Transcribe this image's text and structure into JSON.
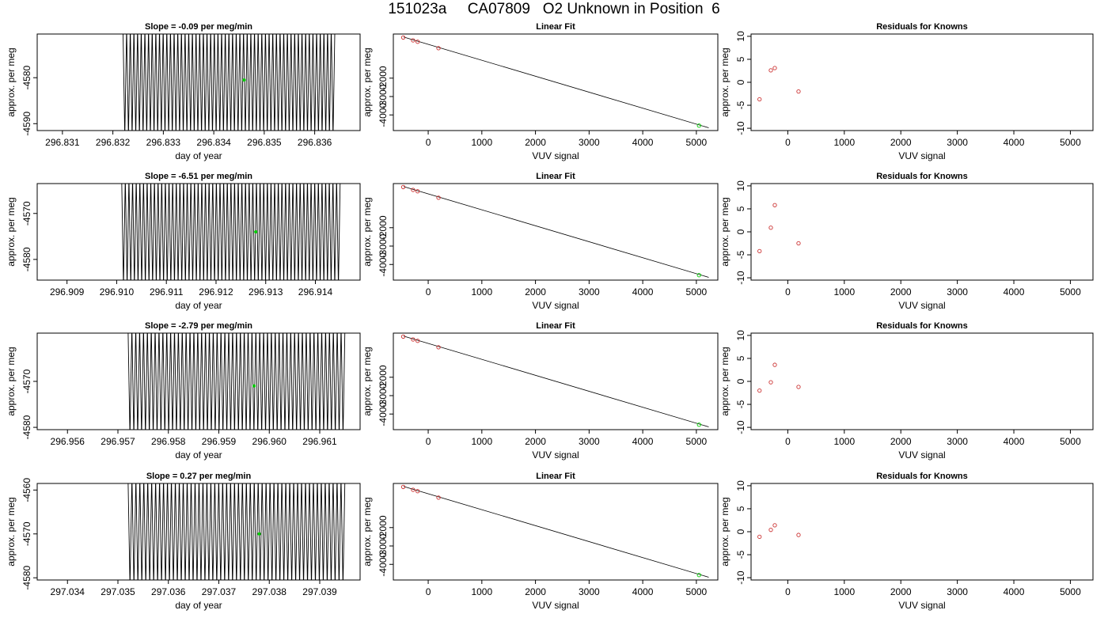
{
  "figure": {
    "title": "151023a     CA07809   O2 Unknown in Position  6"
  },
  "chart_data": [
    {
      "type": "line",
      "row": 0,
      "col": 0,
      "title": "Slope =  -0.09  per meg/min",
      "xlabel": "day of year",
      "ylabel": "approx. per meg",
      "xlim": [
        296.8305,
        296.8369
      ],
      "ylim": [
        -4591.5,
        -4570.5
      ],
      "xticks": [
        296.831,
        296.832,
        296.833,
        296.834,
        296.835,
        296.836
      ],
      "xtick_labels": [
        "296.831",
        "296.832",
        "296.833",
        "296.834",
        "296.835",
        "296.836"
      ],
      "yticks": [
        -4580,
        -4590
      ],
      "ytick_labels": [
        "-4580",
        "-4590"
      ],
      "series": [
        {
          "style": "oscillating-trace",
          "x_start": 296.8322,
          "x_end": 296.8364,
          "y_low": -4593,
          "y_high": -4569,
          "cycles": 58,
          "color": "#000000"
        }
      ],
      "marker": {
        "x": 296.8346,
        "y": -4580.5,
        "color": "#00cc00"
      }
    },
    {
      "type": "scatter",
      "row": 0,
      "col": 1,
      "title": "Linear Fit",
      "xlabel": "VUV signal",
      "ylabel": "approx. per meg",
      "xlim": [
        -650,
        5400
      ],
      "ylim": [
        -4850,
        400
      ],
      "xticks": [
        0,
        1000,
        2000,
        3000,
        4000,
        5000
      ],
      "xtick_labels": [
        "0",
        "1000",
        "2000",
        "3000",
        "4000",
        "5000"
      ],
      "yticks": [
        -2000,
        -3000,
        -4000
      ],
      "ytick_labels": [
        "-2000",
        "-3000",
        "-4000"
      ],
      "fit_line": {
        "x0": -460,
        "y0": 240,
        "x1": 5230,
        "y1": -4700
      },
      "points": [
        {
          "x": -465,
          "y": 210,
          "color": "#cc3333"
        },
        {
          "x": -282,
          "y": 55,
          "color": "#cc3333"
        },
        {
          "x": -197,
          "y": -20,
          "color": "#cc3333"
        },
        {
          "x": 192,
          "y": -370,
          "color": "#cc3333"
        },
        {
          "x": 5050,
          "y": -4580,
          "color": "#00cc00"
        }
      ]
    },
    {
      "type": "scatter",
      "row": 0,
      "col": 2,
      "title": "Residuals for Knowns",
      "xlabel": "VUV signal",
      "ylabel": "approx. per meg",
      "xlim": [
        -650,
        5400
      ],
      "ylim": [
        -10.5,
        10.5
      ],
      "xticks": [
        0,
        1000,
        2000,
        3000,
        4000,
        5000
      ],
      "xtick_labels": [
        "0",
        "1000",
        "2000",
        "3000",
        "4000",
        "5000"
      ],
      "yticks": [
        10,
        5,
        0,
        -5,
        -10
      ],
      "ytick_labels": [
        "10",
        "5",
        "0",
        "-5",
        "-10"
      ],
      "points": [
        {
          "x": -500,
          "y": -3.7,
          "color": "#cc3333"
        },
        {
          "x": -300,
          "y": 2.6,
          "color": "#cc3333"
        },
        {
          "x": -230,
          "y": 3.1,
          "color": "#cc3333"
        },
        {
          "x": 190,
          "y": -2.0,
          "color": "#cc3333"
        }
      ]
    },
    {
      "type": "line",
      "row": 1,
      "col": 0,
      "title": "Slope =  -6.51  per meg/min",
      "xlabel": "day of year",
      "ylabel": "approx. per meg",
      "xlim": [
        296.9084,
        296.9149
      ],
      "ylim": [
        -4584.5,
        -4563.5
      ],
      "xticks": [
        296.909,
        296.91,
        296.911,
        296.912,
        296.913,
        296.914
      ],
      "xtick_labels": [
        "296.909",
        "296.910",
        "296.911",
        "296.912",
        "296.913",
        "296.914"
      ],
      "yticks": [
        -4570,
        -4580
      ],
      "ytick_labels": [
        "-4570",
        "-4580"
      ],
      "series": [
        {
          "style": "oscillating-trace",
          "x_start": 296.9101,
          "x_end": 296.9145,
          "y_low": -4586,
          "y_high": -4562,
          "cycles": 60,
          "color": "#000000"
        }
      ],
      "marker": {
        "x": 296.9128,
        "y": -4574.0,
        "color": "#00cc00"
      }
    },
    {
      "type": "scatter",
      "row": 1,
      "col": 1,
      "title": "Linear Fit",
      "xlabel": "VUV signal",
      "ylabel": "approx. per meg",
      "xlim": [
        -650,
        5400
      ],
      "ylim": [
        -4850,
        400
      ],
      "xticks": [
        0,
        1000,
        2000,
        3000,
        4000,
        5000
      ],
      "xtick_labels": [
        "0",
        "1000",
        "2000",
        "3000",
        "4000",
        "5000"
      ],
      "yticks": [
        -2000,
        -3000,
        -4000
      ],
      "ytick_labels": [
        "-2000",
        "-3000",
        "-4000"
      ],
      "fit_line": {
        "x0": -460,
        "y0": 240,
        "x1": 5230,
        "y1": -4700
      },
      "points": [
        {
          "x": -465,
          "y": 210,
          "color": "#cc3333"
        },
        {
          "x": -282,
          "y": 55,
          "color": "#cc3333"
        },
        {
          "x": -197,
          "y": -20,
          "color": "#cc3333"
        },
        {
          "x": 192,
          "y": -370,
          "color": "#cc3333"
        },
        {
          "x": 5050,
          "y": -4580,
          "color": "#00cc00"
        }
      ]
    },
    {
      "type": "scatter",
      "row": 1,
      "col": 2,
      "title": "Residuals for Knowns",
      "xlabel": "VUV signal",
      "ylabel": "approx. per meg",
      "xlim": [
        -650,
        5400
      ],
      "ylim": [
        -10.5,
        10.5
      ],
      "xticks": [
        0,
        1000,
        2000,
        3000,
        4000,
        5000
      ],
      "xtick_labels": [
        "0",
        "1000",
        "2000",
        "3000",
        "4000",
        "5000"
      ],
      "yticks": [
        10,
        5,
        0,
        -5,
        -10
      ],
      "ytick_labels": [
        "10",
        "5",
        "0",
        "-5",
        "-10"
      ],
      "points": [
        {
          "x": -500,
          "y": -4.2,
          "color": "#cc3333"
        },
        {
          "x": -300,
          "y": 0.9,
          "color": "#cc3333"
        },
        {
          "x": -230,
          "y": 5.8,
          "color": "#cc3333"
        },
        {
          "x": 190,
          "y": -2.5,
          "color": "#cc3333"
        }
      ]
    },
    {
      "type": "line",
      "row": 2,
      "col": 0,
      "title": "Slope =  -2.79  per meg/min",
      "xlabel": "day of year",
      "ylabel": "approx. per meg",
      "xlim": [
        296.9554,
        296.9618
      ],
      "ylim": [
        -4580.5,
        -4559.5
      ],
      "xticks": [
        296.956,
        296.957,
        296.958,
        296.959,
        296.96,
        296.961
      ],
      "xtick_labels": [
        "296.956",
        "296.957",
        "296.958",
        "296.959",
        "296.960",
        "296.961"
      ],
      "yticks": [
        -4570,
        -4580
      ],
      "ytick_labels": [
        "-4570",
        "-4580"
      ],
      "series": [
        {
          "style": "oscillating-trace",
          "x_start": 296.9572,
          "x_end": 296.9615,
          "y_low": -4582,
          "y_high": -4558,
          "cycles": 56,
          "color": "#000000"
        }
      ],
      "marker": {
        "x": 296.9597,
        "y": -4571.0,
        "color": "#00cc00"
      }
    },
    {
      "type": "scatter",
      "row": 2,
      "col": 1,
      "title": "Linear Fit",
      "xlabel": "VUV signal",
      "ylabel": "approx. per meg",
      "xlim": [
        -650,
        5400
      ],
      "ylim": [
        -4850,
        400
      ],
      "xticks": [
        0,
        1000,
        2000,
        3000,
        4000,
        5000
      ],
      "xtick_labels": [
        "0",
        "1000",
        "2000",
        "3000",
        "4000",
        "5000"
      ],
      "yticks": [
        -2000,
        -3000,
        -4000
      ],
      "ytick_labels": [
        "-2000",
        "-3000",
        "-4000"
      ],
      "fit_line": {
        "x0": -460,
        "y0": 240,
        "x1": 5230,
        "y1": -4700
      },
      "points": [
        {
          "x": -465,
          "y": 210,
          "color": "#cc3333"
        },
        {
          "x": -282,
          "y": 55,
          "color": "#cc3333"
        },
        {
          "x": -197,
          "y": -20,
          "color": "#cc3333"
        },
        {
          "x": 192,
          "y": -370,
          "color": "#cc3333"
        },
        {
          "x": 5050,
          "y": -4580,
          "color": "#00cc00"
        }
      ]
    },
    {
      "type": "scatter",
      "row": 2,
      "col": 2,
      "title": "Residuals for Knowns",
      "xlabel": "VUV signal",
      "ylabel": "approx. per meg",
      "xlim": [
        -650,
        5400
      ],
      "ylim": [
        -10.5,
        10.5
      ],
      "xticks": [
        0,
        1000,
        2000,
        3000,
        4000,
        5000
      ],
      "xtick_labels": [
        "0",
        "1000",
        "2000",
        "3000",
        "4000",
        "5000"
      ],
      "yticks": [
        10,
        5,
        0,
        -5,
        -10
      ],
      "ytick_labels": [
        "10",
        "5",
        "0",
        "-5",
        "-10"
      ],
      "points": [
        {
          "x": -500,
          "y": -2.0,
          "color": "#cc3333"
        },
        {
          "x": -300,
          "y": -0.2,
          "color": "#cc3333"
        },
        {
          "x": -230,
          "y": 3.6,
          "color": "#cc3333"
        },
        {
          "x": 190,
          "y": -1.2,
          "color": "#cc3333"
        }
      ]
    },
    {
      "type": "line",
      "row": 3,
      "col": 0,
      "title": "Slope =  0.27  per meg/min",
      "xlabel": "day of year",
      "ylabel": "approx. per meg",
      "xlim": [
        297.0334,
        297.0398
      ],
      "ylim": [
        -4580.5,
        -4558.5
      ],
      "xticks": [
        297.034,
        297.035,
        297.036,
        297.037,
        297.038,
        297.039
      ],
      "xtick_labels": [
        "297.034",
        "297.035",
        "297.036",
        "297.037",
        "297.038",
        "297.039"
      ],
      "yticks": [
        -4560,
        -4570,
        -4580
      ],
      "ytick_labels": [
        "-4560",
        "-4570",
        "-4580"
      ],
      "series": [
        {
          "style": "oscillating-trace",
          "x_start": 297.0352,
          "x_end": 297.0395,
          "y_low": -4582,
          "y_high": -4557,
          "cycles": 55,
          "color": "#000000"
        }
      ],
      "marker": {
        "x": 297.0378,
        "y": -4570.0,
        "color": "#00cc00"
      }
    },
    {
      "type": "scatter",
      "row": 3,
      "col": 1,
      "title": "Linear Fit",
      "xlabel": "VUV signal",
      "ylabel": "approx. per meg",
      "xlim": [
        -650,
        5400
      ],
      "ylim": [
        -4850,
        400
      ],
      "xticks": [
        0,
        1000,
        2000,
        3000,
        4000,
        5000
      ],
      "xtick_labels": [
        "0",
        "1000",
        "2000",
        "3000",
        "4000",
        "5000"
      ],
      "yticks": [
        -2000,
        -3000,
        -4000
      ],
      "ytick_labels": [
        "-2000",
        "-3000",
        "-4000"
      ],
      "fit_line": {
        "x0": -460,
        "y0": 240,
        "x1": 5230,
        "y1": -4700
      },
      "points": [
        {
          "x": -465,
          "y": 210,
          "color": "#cc3333"
        },
        {
          "x": -282,
          "y": 55,
          "color": "#cc3333"
        },
        {
          "x": -197,
          "y": -20,
          "color": "#cc3333"
        },
        {
          "x": 192,
          "y": -370,
          "color": "#cc3333"
        },
        {
          "x": 5050,
          "y": -4580,
          "color": "#00cc00"
        }
      ]
    },
    {
      "type": "scatter",
      "row": 3,
      "col": 2,
      "title": "Residuals for Knowns",
      "xlabel": "VUV signal",
      "ylabel": "approx. per meg",
      "xlim": [
        -650,
        5400
      ],
      "ylim": [
        -10.5,
        10.5
      ],
      "xticks": [
        0,
        1000,
        2000,
        3000,
        4000,
        5000
      ],
      "xtick_labels": [
        "0",
        "1000",
        "2000",
        "3000",
        "4000",
        "5000"
      ],
      "yticks": [
        10,
        5,
        0,
        -5,
        -10
      ],
      "ytick_labels": [
        "10",
        "5",
        "0",
        "-5",
        "-10"
      ],
      "points": [
        {
          "x": -500,
          "y": -1.1,
          "color": "#cc3333"
        },
        {
          "x": -300,
          "y": 0.4,
          "color": "#cc3333"
        },
        {
          "x": -230,
          "y": 1.4,
          "color": "#cc3333"
        },
        {
          "x": 190,
          "y": -0.7,
          "color": "#cc3333"
        }
      ]
    }
  ]
}
